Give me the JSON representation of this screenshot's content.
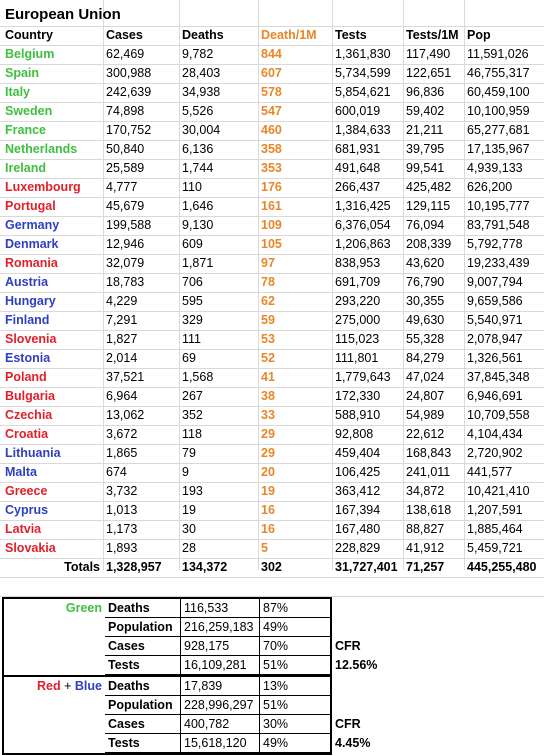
{
  "title": "European Union",
  "headers": [
    "Country",
    "Cases",
    "Deaths",
    "Death/1M",
    "Tests",
    "Tests/1M",
    "Pop"
  ],
  "rows": [
    {
      "country": "Belgium",
      "group": "green",
      "cases": "62,469",
      "deaths": "9,782",
      "d1m": "844",
      "tests": "1,361,830",
      "t1m": "117,490",
      "pop": "11,591,026"
    },
    {
      "country": "Spain",
      "group": "green",
      "cases": "300,988",
      "deaths": "28,403",
      "d1m": "607",
      "tests": "5,734,599",
      "t1m": "122,651",
      "pop": "46,755,317"
    },
    {
      "country": "Italy",
      "group": "green",
      "cases": "242,639",
      "deaths": "34,938",
      "d1m": "578",
      "tests": "5,854,621",
      "t1m": "96,836",
      "pop": "60,459,100"
    },
    {
      "country": "Sweden",
      "group": "green",
      "cases": "74,898",
      "deaths": "5,526",
      "d1m": "547",
      "tests": "600,019",
      "t1m": "59,402",
      "pop": "10,100,959"
    },
    {
      "country": "France",
      "group": "green",
      "cases": "170,752",
      "deaths": "30,004",
      "d1m": "460",
      "tests": "1,384,633",
      "t1m": "21,211",
      "pop": "65,277,681"
    },
    {
      "country": "Netherlands",
      "group": "green",
      "cases": "50,840",
      "deaths": "6,136",
      "d1m": "358",
      "tests": "681,931",
      "t1m": "39,795",
      "pop": "17,135,967"
    },
    {
      "country": "Ireland",
      "group": "green",
      "cases": "25,589",
      "deaths": "1,744",
      "d1m": "353",
      "tests": "491,648",
      "t1m": "99,541",
      "pop": "4,939,133"
    },
    {
      "country": "Luxembourg",
      "group": "red",
      "cases": "4,777",
      "deaths": "110",
      "d1m": "176",
      "tests": "266,437",
      "t1m": "425,482",
      "pop": "626,200"
    },
    {
      "country": "Portugal",
      "group": "red",
      "cases": "45,679",
      "deaths": "1,646",
      "d1m": "161",
      "tests": "1,316,425",
      "t1m": "129,115",
      "pop": "10,195,777"
    },
    {
      "country": "Germany",
      "group": "blue",
      "cases": "199,588",
      "deaths": "9,130",
      "d1m": "109",
      "tests": "6,376,054",
      "t1m": "76,094",
      "pop": "83,791,548"
    },
    {
      "country": "Denmark",
      "group": "blue",
      "cases": "12,946",
      "deaths": "609",
      "d1m": "105",
      "tests": "1,206,863",
      "t1m": "208,339",
      "pop": "5,792,778"
    },
    {
      "country": "Romania",
      "group": "red",
      "cases": "32,079",
      "deaths": "1,871",
      "d1m": "97",
      "tests": "838,953",
      "t1m": "43,620",
      "pop": "19,233,439"
    },
    {
      "country": "Austria",
      "group": "blue",
      "cases": "18,783",
      "deaths": "706",
      "d1m": "78",
      "tests": "691,709",
      "t1m": "76,790",
      "pop": "9,007,794"
    },
    {
      "country": "Hungary",
      "group": "blue",
      "cases": "4,229",
      "deaths": "595",
      "d1m": "62",
      "tests": "293,220",
      "t1m": "30,355",
      "pop": "9,659,586"
    },
    {
      "country": "Finland",
      "group": "blue",
      "cases": "7,291",
      "deaths": "329",
      "d1m": "59",
      "tests": "275,000",
      "t1m": "49,630",
      "pop": "5,540,971"
    },
    {
      "country": "Slovenia",
      "group": "red",
      "cases": "1,827",
      "deaths": "111",
      "d1m": "53",
      "tests": "115,023",
      "t1m": "55,328",
      "pop": "2,078,947"
    },
    {
      "country": "Estonia",
      "group": "blue",
      "cases": "2,014",
      "deaths": "69",
      "d1m": "52",
      "tests": "111,801",
      "t1m": "84,279",
      "pop": "1,326,561"
    },
    {
      "country": "Poland",
      "group": "red",
      "cases": "37,521",
      "deaths": "1,568",
      "d1m": "41",
      "tests": "1,779,643",
      "t1m": "47,024",
      "pop": "37,845,348"
    },
    {
      "country": "Bulgaria",
      "group": "red",
      "cases": "6,964",
      "deaths": "267",
      "d1m": "38",
      "tests": "172,330",
      "t1m": "24,807",
      "pop": "6,946,691"
    },
    {
      "country": "Czechia",
      "group": "red",
      "cases": "13,062",
      "deaths": "352",
      "d1m": "33",
      "tests": "588,910",
      "t1m": "54,989",
      "pop": "10,709,558"
    },
    {
      "country": "Croatia",
      "group": "red",
      "cases": "3,672",
      "deaths": "118",
      "d1m": "29",
      "tests": "92,808",
      "t1m": "22,612",
      "pop": "4,104,434"
    },
    {
      "country": "Lithuania",
      "group": "blue",
      "cases": "1,865",
      "deaths": "79",
      "d1m": "29",
      "tests": "459,404",
      "t1m": "168,843",
      "pop": "2,720,902"
    },
    {
      "country": "Malta",
      "group": "blue",
      "cases": "674",
      "deaths": "9",
      "d1m": "20",
      "tests": "106,425",
      "t1m": "241,011",
      "pop": "441,577"
    },
    {
      "country": "Greece",
      "group": "red",
      "cases": "3,732",
      "deaths": "193",
      "d1m": "19",
      "tests": "363,412",
      "t1m": "34,872",
      "pop": "10,421,410"
    },
    {
      "country": "Cyprus",
      "group": "blue",
      "cases": "1,013",
      "deaths": "19",
      "d1m": "16",
      "tests": "167,394",
      "t1m": "138,618",
      "pop": "1,207,591"
    },
    {
      "country": "Latvia",
      "group": "red",
      "cases": "1,173",
      "deaths": "30",
      "d1m": "16",
      "tests": "167,480",
      "t1m": "88,827",
      "pop": "1,885,464"
    },
    {
      "country": "Slovakia",
      "group": "red",
      "cases": "1,893",
      "deaths": "28",
      "d1m": "5",
      "tests": "228,829",
      "t1m": "41,912",
      "pop": "5,459,721"
    }
  ],
  "totals": {
    "label": "Totals",
    "cases": "1,328,957",
    "deaths": "134,372",
    "d1m": "302",
    "tests": "31,727,401",
    "t1m": "71,257",
    "pop": "445,255,480"
  },
  "green_summary": {
    "label": "Green",
    "rows": [
      {
        "metric": "Deaths",
        "value": "116,533",
        "pct": "87%"
      },
      {
        "metric": "Population",
        "value": "216,259,183",
        "pct": "49%"
      },
      {
        "metric": "Cases",
        "value": "928,175",
        "pct": "70%"
      },
      {
        "metric": "Tests",
        "value": "16,109,281",
        "pct": "51%"
      }
    ],
    "cfr_label": "CFR",
    "cfr_value": "12.56%"
  },
  "redblue_summary": {
    "label_red": "Red",
    "label_plus": " + ",
    "label_blue": "Blue",
    "rows": [
      {
        "metric": "Deaths",
        "value": "17,839",
        "pct": "13%"
      },
      {
        "metric": "Population",
        "value": "228,996,297",
        "pct": "51%"
      },
      {
        "metric": "Cases",
        "value": "400,782",
        "pct": "30%"
      },
      {
        "metric": "Tests",
        "value": "15,618,120",
        "pct": "49%"
      }
    ],
    "cfr_label": "CFR",
    "cfr_value": "4.45%"
  },
  "colors": {
    "green": "#3fbf3f",
    "red": "#e0202a",
    "blue": "#2f3fbf",
    "orange": "#e8862a"
  }
}
